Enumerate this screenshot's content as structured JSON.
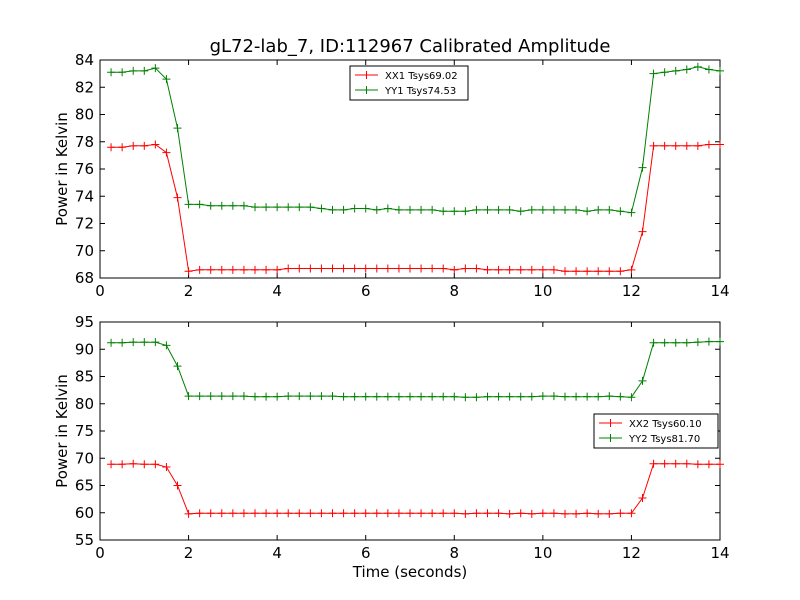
{
  "chart_data": [
    {
      "type": "line",
      "title": "gL72-lab_7, ID:112967 Calibrated Amplitude",
      "xlabel": "",
      "ylabel": "Power in Kelvin",
      "xlim": [
        0,
        14
      ],
      "ylim": [
        68,
        84
      ],
      "xticks": [
        0,
        2,
        4,
        6,
        8,
        10,
        12,
        14
      ],
      "yticks": [
        68,
        70,
        72,
        74,
        76,
        78,
        80,
        82,
        84
      ],
      "xtick_labels": [
        "0",
        "2",
        "4",
        "6",
        "8",
        "10",
        "12",
        "14"
      ],
      "ytick_labels": [
        "68",
        "70",
        "72",
        "74",
        "76",
        "78",
        "80",
        "82",
        "84"
      ],
      "grid": false,
      "legend_position": "top-center",
      "x": [
        0.25,
        0.5,
        0.75,
        1.0,
        1.25,
        1.5,
        1.75,
        2.0,
        2.25,
        2.5,
        2.75,
        3.0,
        3.25,
        3.5,
        3.75,
        4.0,
        4.25,
        4.5,
        4.75,
        5.0,
        5.25,
        5.5,
        5.75,
        6.0,
        6.25,
        6.5,
        6.75,
        7.0,
        7.25,
        7.5,
        7.75,
        8.0,
        8.25,
        8.5,
        8.75,
        9.0,
        9.25,
        9.5,
        9.75,
        10.0,
        10.25,
        10.5,
        10.75,
        11.0,
        11.25,
        11.5,
        11.75,
        12.0,
        12.25,
        12.5,
        12.75,
        13.0,
        13.25,
        13.5,
        13.75,
        14.0
      ],
      "series": [
        {
          "name": "XX1 Tsys69.02",
          "color": "#ff0000",
          "values": [
            77.6,
            77.6,
            77.7,
            77.7,
            77.8,
            77.2,
            73.9,
            68.5,
            68.6,
            68.6,
            68.6,
            68.6,
            68.6,
            68.6,
            68.6,
            68.6,
            68.7,
            68.7,
            68.7,
            68.7,
            68.7,
            68.7,
            68.7,
            68.7,
            68.7,
            68.7,
            68.7,
            68.7,
            68.7,
            68.7,
            68.7,
            68.6,
            68.7,
            68.7,
            68.6,
            68.6,
            68.6,
            68.6,
            68.6,
            68.6,
            68.6,
            68.5,
            68.5,
            68.5,
            68.5,
            68.5,
            68.5,
            68.6,
            71.4,
            77.7,
            77.7,
            77.7,
            77.7,
            77.7,
            77.8,
            77.8
          ]
        },
        {
          "name": "YY1 Tsys74.53",
          "color": "#008000",
          "values": [
            83.1,
            83.1,
            83.2,
            83.2,
            83.4,
            82.6,
            79.0,
            73.4,
            73.4,
            73.3,
            73.3,
            73.3,
            73.3,
            73.2,
            73.2,
            73.2,
            73.2,
            73.2,
            73.2,
            73.1,
            73.0,
            73.0,
            73.1,
            73.1,
            73.0,
            73.1,
            73.0,
            73.0,
            73.0,
            73.0,
            72.9,
            72.9,
            72.9,
            73.0,
            73.0,
            73.0,
            73.0,
            72.9,
            73.0,
            73.0,
            73.0,
            73.0,
            73.0,
            72.9,
            73.0,
            73.0,
            72.9,
            72.8,
            76.1,
            83.0,
            83.1,
            83.2,
            83.3,
            83.5,
            83.3,
            83.2
          ]
        }
      ]
    },
    {
      "type": "line",
      "title": "",
      "xlabel": "Time (seconds)",
      "ylabel": "Power in Kelvin",
      "xlim": [
        0,
        14
      ],
      "ylim": [
        55,
        95
      ],
      "xticks": [
        0,
        2,
        4,
        6,
        8,
        10,
        12,
        14
      ],
      "yticks": [
        55,
        60,
        65,
        70,
        75,
        80,
        85,
        90,
        95
      ],
      "xtick_labels": [
        "0",
        "2",
        "4",
        "6",
        "8",
        "10",
        "12",
        "14"
      ],
      "ytick_labels": [
        "55",
        "60",
        "65",
        "70",
        "75",
        "80",
        "85",
        "90",
        "95"
      ],
      "grid": false,
      "legend_position": "center-right",
      "x": [
        0.25,
        0.5,
        0.75,
        1.0,
        1.25,
        1.5,
        1.75,
        2.0,
        2.25,
        2.5,
        2.75,
        3.0,
        3.25,
        3.5,
        3.75,
        4.0,
        4.25,
        4.5,
        4.75,
        5.0,
        5.25,
        5.5,
        5.75,
        6.0,
        6.25,
        6.5,
        6.75,
        7.0,
        7.25,
        7.5,
        7.75,
        8.0,
        8.25,
        8.5,
        8.75,
        9.0,
        9.25,
        9.5,
        9.75,
        10.0,
        10.25,
        10.5,
        10.75,
        11.0,
        11.25,
        11.5,
        11.75,
        12.0,
        12.25,
        12.5,
        12.75,
        13.0,
        13.25,
        13.5,
        13.75,
        14.0
      ],
      "series": [
        {
          "name": "XX2 Tsys60.10",
          "color": "#ff0000",
          "values": [
            68.9,
            68.9,
            69.0,
            68.9,
            68.9,
            68.4,
            65.0,
            59.8,
            59.9,
            59.9,
            59.9,
            59.9,
            59.9,
            59.9,
            59.9,
            59.9,
            59.9,
            59.9,
            59.9,
            59.9,
            59.9,
            59.9,
            59.9,
            59.9,
            59.9,
            59.9,
            59.9,
            59.9,
            59.9,
            59.9,
            59.9,
            59.9,
            59.8,
            59.9,
            59.9,
            59.9,
            59.8,
            59.9,
            59.8,
            59.9,
            59.9,
            59.8,
            59.8,
            59.9,
            59.8,
            59.8,
            59.9,
            59.9,
            62.7,
            69.0,
            69.0,
            69.0,
            69.0,
            68.9,
            68.9,
            68.9
          ]
        },
        {
          "name": "YY2 Tsys81.70",
          "color": "#008000",
          "values": [
            91.2,
            91.2,
            91.3,
            91.3,
            91.3,
            90.7,
            86.9,
            81.4,
            81.4,
            81.4,
            81.4,
            81.4,
            81.4,
            81.3,
            81.3,
            81.3,
            81.4,
            81.4,
            81.4,
            81.4,
            81.4,
            81.3,
            81.3,
            81.3,
            81.3,
            81.3,
            81.3,
            81.3,
            81.3,
            81.3,
            81.3,
            81.3,
            81.2,
            81.2,
            81.3,
            81.3,
            81.3,
            81.3,
            81.3,
            81.4,
            81.4,
            81.3,
            81.3,
            81.3,
            81.3,
            81.4,
            81.3,
            81.2,
            84.2,
            91.2,
            91.2,
            91.2,
            91.2,
            91.3,
            91.4,
            91.4
          ]
        }
      ]
    }
  ]
}
